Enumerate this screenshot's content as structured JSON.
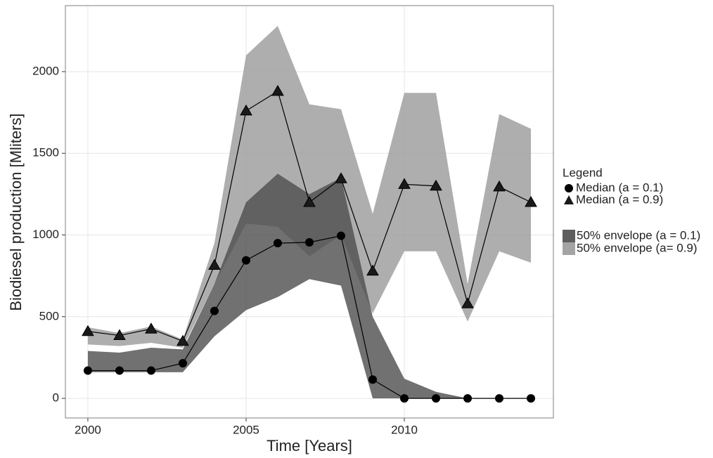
{
  "chart_data": {
    "type": "line",
    "x_label": "Time [Years]",
    "y_label": "Biodiesel production [Mliters]",
    "x": [
      2000,
      2001,
      2002,
      2003,
      2004,
      2005,
      2006,
      2007,
      2008,
      2009,
      2010,
      2011,
      2012,
      2013,
      2014
    ],
    "xlim": [
      1999.29,
      2014.71
    ],
    "xticks": [
      2000,
      2005,
      2010
    ],
    "ylim": [
      -120,
      2404
    ],
    "yticks": [
      0,
      500,
      1000,
      1500,
      2000
    ],
    "grid": true,
    "legend_title": "Legend",
    "legend_position": "right",
    "bands": [
      {
        "name": "50% envelope (a= 0.9)",
        "color": "#9a9a9a",
        "lower": [
          330,
          320,
          340,
          310,
          700,
          1070,
          1050,
          870,
          1000,
          520,
          900,
          900,
          470,
          900,
          830
        ],
        "upper": [
          435,
          400,
          440,
          360,
          950,
          2100,
          2280,
          1800,
          1770,
          1130,
          1870,
          1870,
          700,
          1740,
          1650
        ]
      },
      {
        "name": "50% envelope (a = 0.1)",
        "color": "#4d4d4d",
        "lower": [
          160,
          160,
          160,
          160,
          380,
          540,
          620,
          730,
          690,
          0,
          0,
          0,
          0,
          0,
          0
        ],
        "upper": [
          290,
          280,
          310,
          300,
          700,
          1200,
          1375,
          1250,
          1350,
          500,
          120,
          40,
          0,
          0,
          0
        ]
      }
    ],
    "series": [
      {
        "name": "Median (a = 0.1)",
        "color": "#000000",
        "marker": "circle",
        "values": [
          170,
          170,
          170,
          215,
          535,
          845,
          950,
          955,
          995,
          115,
          0,
          0,
          0,
          0,
          0
        ]
      },
      {
        "name": "Median (a = 0.9)",
        "color": "#1a1a1a",
        "marker": "triangle",
        "values": [
          410,
          385,
          425,
          350,
          815,
          1760,
          1880,
          1200,
          1345,
          780,
          1310,
          1300,
          580,
          1295,
          1200
        ]
      }
    ]
  }
}
